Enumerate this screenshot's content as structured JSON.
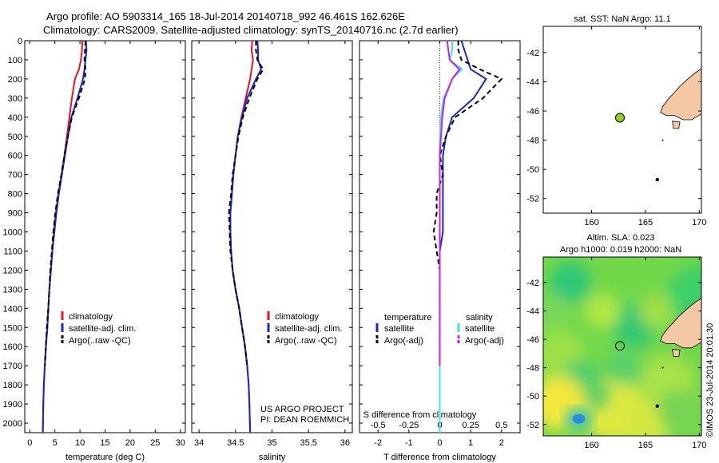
{
  "header": {
    "line1": "Argo profile: AO 5903314_165 18-Jul-2014 20140718_992 46.461S 162.626E",
    "line2": "Climatology: CARS2009. Satellite-adjusted climatology: synTS_20140716.nc (2.7d earlier)"
  },
  "credits": {
    "project": "US ARGO PROJECT",
    "pi": "PI: DEAN ROEMMICH",
    "imos": "©IMOS 23-Jul-2014 20:01:30"
  },
  "colors": {
    "climatology": "#e8141e",
    "satellite": "#1428d2",
    "argo": "#000000",
    "s_satellite": "#3ee6e6",
    "s_argo": "#d21ee6",
    "land": "#f5c8a5",
    "float_marker": "#8cd21e"
  },
  "chart_data": [
    {
      "type": "line",
      "id": "temperature",
      "xlabel": "temperature (deg C)",
      "xlim": [
        -1,
        31
      ],
      "ylim": [
        0,
        2050
      ],
      "y_reversed": true,
      "xticks": [
        0,
        5,
        10,
        15,
        20,
        25,
        30
      ],
      "yticks": [
        0,
        100,
        200,
        300,
        400,
        500,
        600,
        700,
        800,
        900,
        1000,
        1100,
        1200,
        1300,
        1400,
        1500,
        1600,
        1700,
        1800,
        1900,
        2000
      ],
      "legend": [
        "climatology",
        "satellite-adj. clim.",
        "Argo(..raw -QC)"
      ],
      "series": [
        {
          "name": "climatology",
          "color": "red",
          "x": [
            10.5,
            10.4,
            10.2,
            9.8,
            9.0,
            8.4,
            7.9,
            7.4,
            6.9,
            6.3,
            5.7,
            5.2,
            4.8,
            4.5,
            4.2,
            3.9,
            3.7,
            3.5,
            3.2,
            3.0,
            2.8,
            2.7,
            2.6
          ],
          "y": [
            0,
            50,
            100,
            150,
            200,
            300,
            400,
            500,
            600,
            700,
            800,
            900,
            1000,
            1100,
            1200,
            1300,
            1400,
            1500,
            1600,
            1700,
            1800,
            1900,
            2050
          ]
        },
        {
          "name": "satellite-adj. clim.",
          "color": "blue",
          "x": [
            11.2,
            11.3,
            11.1,
            10.9,
            10.6,
            9.5,
            8.3,
            7.6,
            7.0,
            6.4,
            5.8,
            5.3,
            4.9,
            4.5,
            4.2,
            3.9,
            3.7,
            3.5,
            3.2,
            3.0,
            2.8,
            2.7,
            2.6
          ],
          "y": [
            0,
            50,
            100,
            150,
            200,
            300,
            400,
            500,
            600,
            700,
            800,
            900,
            1000,
            1100,
            1200,
            1300,
            1400,
            1500,
            1600,
            1700,
            1800,
            1900,
            2050
          ]
        },
        {
          "name": "Argo(..raw -QC)",
          "color": "black",
          "dash": true,
          "x": [
            11.1,
            11.0,
            10.9,
            11.1,
            11.0,
            9.8,
            8.4,
            7.6,
            6.9,
            6.3,
            5.6,
            5.1,
            4.7,
            4.4,
            4.1,
            3.9,
            3.7,
            3.4,
            3.2,
            3.0
          ],
          "y": [
            0,
            50,
            100,
            150,
            200,
            300,
            400,
            500,
            600,
            700,
            800,
            900,
            1000,
            1100,
            1200,
            1300,
            1400,
            1500,
            1600,
            1700
          ]
        }
      ]
    },
    {
      "type": "line",
      "id": "salinity",
      "xlabel": "salinity",
      "xlim": [
        33.9,
        36.1
      ],
      "ylim": [
        0,
        2050
      ],
      "y_reversed": true,
      "xticks": [
        34,
        34.5,
        35,
        35.5,
        36
      ],
      "legend": [
        "climatology",
        "satellite-adj. clim.",
        "Argo(..raw -QC)"
      ],
      "series": [
        {
          "name": "climatology",
          "color": "red",
          "x": [
            34.73,
            34.72,
            34.74,
            34.72,
            34.7,
            34.64,
            34.58,
            34.53,
            34.5,
            34.47,
            34.45,
            34.43,
            34.43,
            34.44,
            34.46,
            34.5,
            34.55,
            34.59,
            34.63,
            34.66,
            34.68,
            34.69,
            34.7
          ],
          "y": [
            0,
            50,
            100,
            150,
            200,
            300,
            400,
            500,
            600,
            700,
            800,
            900,
            1000,
            1100,
            1200,
            1300,
            1400,
            1500,
            1600,
            1700,
            1800,
            1900,
            2050
          ]
        },
        {
          "name": "satellite-adj. clim.",
          "color": "blue",
          "x": [
            34.8,
            34.81,
            34.81,
            34.85,
            34.78,
            34.66,
            34.59,
            34.53,
            34.5,
            34.47,
            34.45,
            34.43,
            34.43,
            34.44,
            34.46,
            34.5,
            34.55,
            34.59,
            34.63,
            34.66,
            34.68,
            34.69,
            34.7
          ],
          "y": [
            0,
            50,
            100,
            150,
            200,
            300,
            400,
            500,
            600,
            700,
            800,
            900,
            1000,
            1100,
            1200,
            1300,
            1400,
            1500,
            1600,
            1700,
            1800,
            1900,
            2050
          ]
        },
        {
          "name": "Argo(..raw -QC)",
          "color": "black",
          "dash": true,
          "x": [
            34.78,
            34.78,
            34.8,
            34.88,
            34.8,
            34.69,
            34.6,
            34.54,
            34.5,
            34.46,
            34.44,
            34.41,
            34.42,
            34.43,
            34.46,
            34.5,
            34.55,
            34.59,
            34.63,
            34.66
          ],
          "y": [
            0,
            50,
            100,
            150,
            200,
            300,
            400,
            500,
            600,
            700,
            800,
            900,
            1000,
            1100,
            1200,
            1300,
            1400,
            1500,
            1600,
            1700
          ]
        }
      ]
    },
    {
      "type": "line",
      "id": "difference",
      "xlabel": "T difference from climatology",
      "xlabel2": "S difference from climatology",
      "xlim": [
        -2.6,
        2.6
      ],
      "ylim": [
        0,
        2050
      ],
      "y_reversed": true,
      "xticks": [
        -2,
        -1,
        0,
        1,
        2
      ],
      "xticks_S": [
        -0.5,
        -0.25,
        0,
        0.25,
        0.5
      ],
      "legend_title_T": "temperature",
      "legend_title_S": "salinity",
      "legend_T": [
        "satellite",
        "Argo(-adj)"
      ],
      "legend_S": [
        "satellite",
        "Argo(-adj)"
      ],
      "series": [
        {
          "name": "satellite",
          "group": "T",
          "color": "blue",
          "x": [
            0.7,
            0.8,
            0.9,
            1.0,
            1.5,
            1.1,
            0.4,
            0.2,
            0.1,
            0.1,
            0.1,
            0.1,
            0.1,
            0.0,
            0.0,
            0.0,
            0.0,
            0.0,
            0.0,
            0.0,
            0.0,
            0.0,
            0.0
          ],
          "y": [
            0,
            50,
            100,
            150,
            200,
            300,
            400,
            500,
            600,
            700,
            800,
            900,
            1000,
            1100,
            1200,
            1300,
            1400,
            1500,
            1600,
            1700,
            1800,
            1900,
            2050
          ]
        },
        {
          "name": "Argo(-adj)",
          "group": "T",
          "color": "black",
          "dash": true,
          "x": [
            0.6,
            0.6,
            0.7,
            1.3,
            2.0,
            1.4,
            0.5,
            0.2,
            0.0,
            0.1,
            -0.1,
            -0.1,
            -0.2,
            -0.1,
            0.0,
            0.0,
            0.0,
            0.0,
            0.0,
            0.0
          ],
          "y": [
            0,
            50,
            100,
            150,
            200,
            300,
            400,
            500,
            600,
            700,
            800,
            900,
            1000,
            1100,
            1200,
            1300,
            1400,
            1500,
            1600,
            1700
          ]
        },
        {
          "name": "satellite",
          "group": "S",
          "color": "cyan",
          "x": [
            0.1,
            0.1,
            0.08,
            0.18,
            0.1,
            0.03,
            0.01,
            0.0,
            0.0,
            0.0,
            0.0,
            0.0,
            0.0,
            0.0,
            0.0,
            0.0,
            0.0,
            0.0,
            0.0,
            0.0,
            0.0,
            0.0,
            0.0
          ],
          "y": [
            0,
            50,
            100,
            150,
            200,
            300,
            400,
            500,
            600,
            700,
            800,
            900,
            1000,
            1100,
            1200,
            1300,
            1400,
            1500,
            1600,
            1700,
            1800,
            1900,
            2050
          ]
        },
        {
          "name": "Argo(-adj)",
          "group": "S",
          "color": "magenta",
          "x": [
            0.06,
            0.07,
            0.08,
            0.16,
            0.1,
            0.04,
            0.02,
            0.01,
            0.0,
            0.0,
            0.0,
            0.0,
            0.0,
            0.0,
            0.0,
            0.0,
            0.0,
            0.0,
            0.0,
            0.0
          ],
          "y": [
            0,
            50,
            100,
            150,
            200,
            300,
            400,
            500,
            600,
            700,
            800,
            900,
            1000,
            1100,
            1200,
            1300,
            1400,
            1500,
            1600,
            1700
          ]
        }
      ]
    },
    {
      "type": "scatter",
      "id": "map_sst",
      "title": "sat. SST: NaN Argo: 11.1",
      "xlim": [
        155.5,
        170.2
      ],
      "ylim": [
        -53,
        -40.2
      ],
      "xticks": [
        160,
        165,
        170
      ],
      "yticks": [
        -42,
        -44,
        -46,
        -48,
        -50,
        -52
      ],
      "float_position": {
        "lon": 162.626,
        "lat": -46.461
      }
    },
    {
      "type": "heatmap",
      "id": "map_sla",
      "title_line1": "Altim. SLA: 0.023",
      "title_line2": "Argo h1000: 0.019 h2000: NaN",
      "xlim": [
        155.5,
        170.2
      ],
      "ylim": [
        -52.8,
        -40.2
      ],
      "xticks": [
        160,
        165,
        170
      ],
      "yticks": [
        -42,
        -44,
        -46,
        -48,
        -50,
        -52
      ],
      "float_position": {
        "lon": 162.626,
        "lat": -46.461
      }
    }
  ]
}
